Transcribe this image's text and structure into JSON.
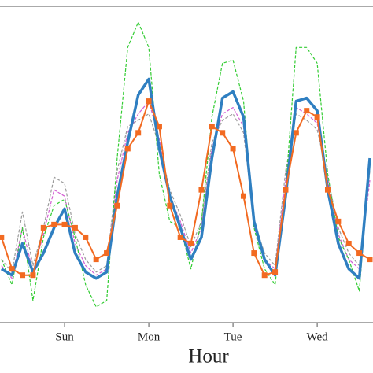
{
  "chart_data": {
    "type": "line",
    "xlabel": "Hour",
    "x": [
      6,
      9,
      12,
      15,
      18,
      21,
      24,
      27,
      30,
      33,
      36,
      39,
      42,
      45,
      48,
      51,
      54,
      57,
      60,
      63,
      66,
      69,
      72,
      75,
      78,
      81,
      84,
      87,
      90,
      93,
      96,
      99,
      102,
      105,
      108,
      111
    ],
    "xlim": [
      5.6,
      111.9
    ],
    "xticks": [
      {
        "value": 24,
        "label": "Sun"
      },
      {
        "value": 48,
        "label": "Mon"
      },
      {
        "value": 72,
        "label": "Tue"
      },
      {
        "value": 96,
        "label": "Wed"
      }
    ],
    "ylim": [
      0,
      100
    ],
    "series": [
      {
        "color": "#9a9a9a",
        "style": "dashed",
        "values": [
          20,
          16,
          35,
          18,
          30,
          46,
          44,
          28,
          20,
          16,
          18,
          48,
          62,
          64,
          66,
          56,
          42,
          34,
          24,
          32,
          57,
          64,
          66,
          60,
          32,
          22,
          18,
          48,
          66,
          64,
          61,
          46,
          30,
          22,
          18,
          48
        ]
      },
      {
        "color": "#d35fd3",
        "style": "dashed",
        "values": [
          18,
          14,
          30,
          16,
          28,
          42,
          40,
          25,
          18,
          15,
          17,
          45,
          60,
          66,
          70,
          58,
          40,
          32,
          22,
          30,
          55,
          66,
          68,
          62,
          30,
          20,
          17,
          45,
          68,
          66,
          63,
          45,
          28,
          20,
          17,
          45
        ]
      },
      {
        "color": "#33cc33",
        "style": "dashed",
        "values": [
          20,
          12,
          30,
          7,
          27,
          37,
          39,
          27,
          12,
          5,
          7,
          52,
          87,
          95,
          87,
          47,
          32,
          30,
          17,
          32,
          65,
          82,
          83,
          70,
          30,
          17,
          12,
          42,
          87,
          87,
          82,
          47,
          27,
          20,
          10,
          52
        ]
      },
      {
        "color": "#2f7fc1",
        "style": "solid",
        "values": [
          17,
          15,
          25,
          16,
          22,
          30,
          36,
          22,
          16,
          14,
          16,
          40,
          57,
          72,
          77,
          55,
          40,
          30,
          20,
          27,
          52,
          71,
          73,
          65,
          32,
          20,
          15,
          40,
          70,
          71,
          67,
          42,
          25,
          17,
          14,
          52
        ]
      },
      {
        "color": "#f26a21",
        "style": "markers",
        "values": [
          27,
          17,
          15,
          15,
          30,
          31,
          31,
          30,
          27,
          20,
          22,
          37,
          55,
          60,
          70,
          62,
          37,
          27,
          25,
          42,
          62,
          60,
          55,
          40,
          22,
          15,
          16,
          42,
          60,
          67,
          65,
          42,
          32,
          25,
          22,
          20
        ]
      }
    ]
  }
}
